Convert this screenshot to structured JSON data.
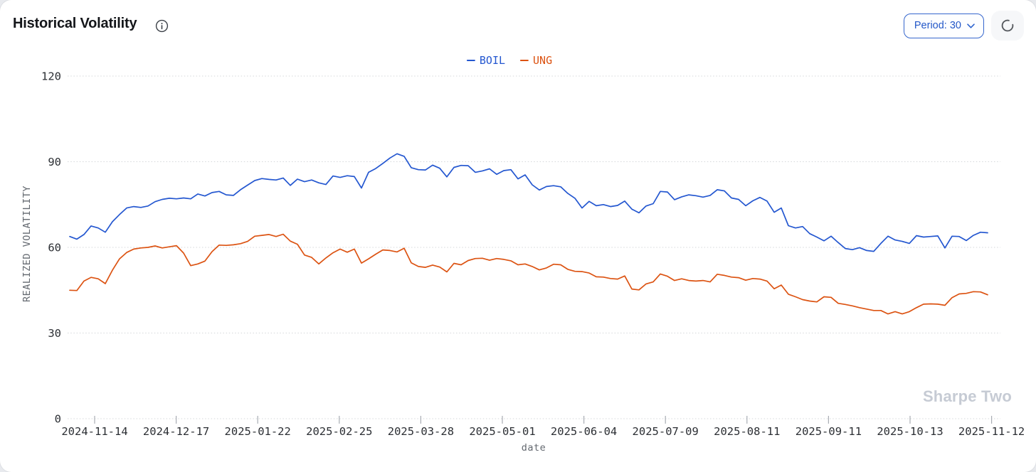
{
  "header": {
    "title": "Historical Volatility"
  },
  "controls": {
    "period_label": "Period: 30"
  },
  "watermark": "Sharpe Two",
  "colors": {
    "boil_line": "#2457d0",
    "ung_line": "#dc5312",
    "button_accent": "#2d64cf",
    "watermark_gray": "#c6cbd4"
  },
  "chart_data": {
    "type": "line",
    "title": "Historical Volatility",
    "xlabel": "date",
    "ylabel": "REALIZED VOLATILITY",
    "ylim": [
      0,
      120
    ],
    "yticks": [
      0,
      30,
      60,
      90,
      120
    ],
    "grid": "horizontal-dotted",
    "legend_position": "top-center",
    "xticks": [
      "2024-11-14",
      "2024-12-17",
      "2025-01-22",
      "2025-02-25",
      "2025-03-28",
      "2025-05-01",
      "2025-06-04",
      "2025-07-09",
      "2025-08-11",
      "2025-09-11",
      "2025-10-13",
      "2025-11-12"
    ],
    "x_range": [
      "2024-11-06",
      "2025-11-12"
    ],
    "series": [
      {
        "name": "BOIL",
        "color": "#2457d0",
        "values": [
          63.8,
          62.9,
          64.5,
          67.5,
          66.8,
          65.3,
          69.0,
          71.5,
          73.8,
          74.3,
          74.0,
          74.5,
          76.0,
          76.8,
          77.2,
          77.0,
          77.3,
          77.0,
          78.7,
          78.0,
          79.2,
          79.6,
          78.4,
          78.2,
          80.2,
          81.8,
          83.4,
          84.1,
          83.8,
          83.6,
          84.3,
          81.7,
          83.9,
          83.0,
          83.6,
          82.6,
          82.0,
          85.0,
          84.5,
          85.1,
          84.8,
          80.8,
          86.3,
          87.6,
          89.4,
          91.3,
          92.8,
          91.9,
          87.9,
          87.2,
          87.1,
          88.8,
          87.7,
          84.7,
          88.0,
          88.7,
          88.6,
          86.3,
          86.8,
          87.5,
          85.6,
          86.9,
          87.2,
          84.0,
          85.4,
          81.9,
          80.1,
          81.3,
          81.6,
          81.2,
          78.9,
          77.2,
          73.8,
          76.1,
          74.6,
          75.0,
          74.3,
          74.7,
          76.2,
          73.4,
          72.1,
          74.5,
          75.3,
          79.6,
          79.4,
          76.7,
          77.7,
          78.4,
          78.1,
          77.6,
          78.2,
          80.2,
          79.8,
          77.3,
          76.8,
          74.6,
          76.3,
          77.5,
          76.2,
          72.3,
          73.8,
          67.6,
          66.8,
          67.3,
          64.8,
          63.6,
          62.3,
          63.9,
          61.7,
          59.6,
          59.2,
          59.9,
          58.9,
          58.6,
          61.4,
          63.9,
          62.6,
          62.1,
          61.4,
          64.1,
          63.6,
          63.8,
          64.0,
          59.8,
          63.9,
          63.8,
          62.4,
          64.2,
          65.3,
          65.1
        ]
      },
      {
        "name": "UNG",
        "color": "#dc5312",
        "values": [
          45.0,
          44.9,
          48.2,
          49.5,
          49.0,
          47.3,
          52.0,
          56.0,
          58.2,
          59.4,
          59.8,
          60.0,
          60.5,
          59.8,
          60.2,
          60.6,
          58.0,
          53.6,
          54.2,
          55.2,
          58.5,
          60.8,
          60.7,
          60.9,
          61.3,
          62.1,
          63.9,
          64.2,
          64.5,
          63.8,
          64.6,
          62.2,
          61.1,
          57.3,
          56.5,
          54.2,
          56.3,
          58.1,
          59.4,
          58.3,
          59.4,
          54.5,
          56.0,
          57.6,
          59.1,
          58.9,
          58.4,
          59.7,
          54.6,
          53.3,
          53.0,
          53.8,
          53.1,
          51.4,
          54.4,
          53.9,
          55.4,
          56.1,
          56.2,
          55.5,
          56.1,
          55.8,
          55.3,
          53.9,
          54.2,
          53.3,
          52.1,
          52.8,
          54.1,
          53.9,
          52.3,
          51.6,
          51.5,
          51.0,
          49.7,
          49.6,
          49.1,
          48.9,
          50.0,
          45.4,
          45.1,
          47.2,
          47.9,
          50.7,
          49.9,
          48.4,
          49.0,
          48.4,
          48.2,
          48.4,
          47.9,
          50.6,
          50.2,
          49.6,
          49.4,
          48.5,
          49.1,
          48.9,
          48.2,
          45.5,
          46.8,
          43.6,
          42.7,
          41.7,
          41.2,
          40.9,
          42.7,
          42.5,
          40.4,
          40.0,
          39.5,
          38.9,
          38.4,
          37.9,
          37.9,
          36.7,
          37.5,
          36.7,
          37.5,
          38.9,
          40.1,
          40.2,
          40.1,
          39.7,
          42.4,
          43.7,
          43.9,
          44.5,
          44.4,
          43.4
        ]
      }
    ]
  }
}
